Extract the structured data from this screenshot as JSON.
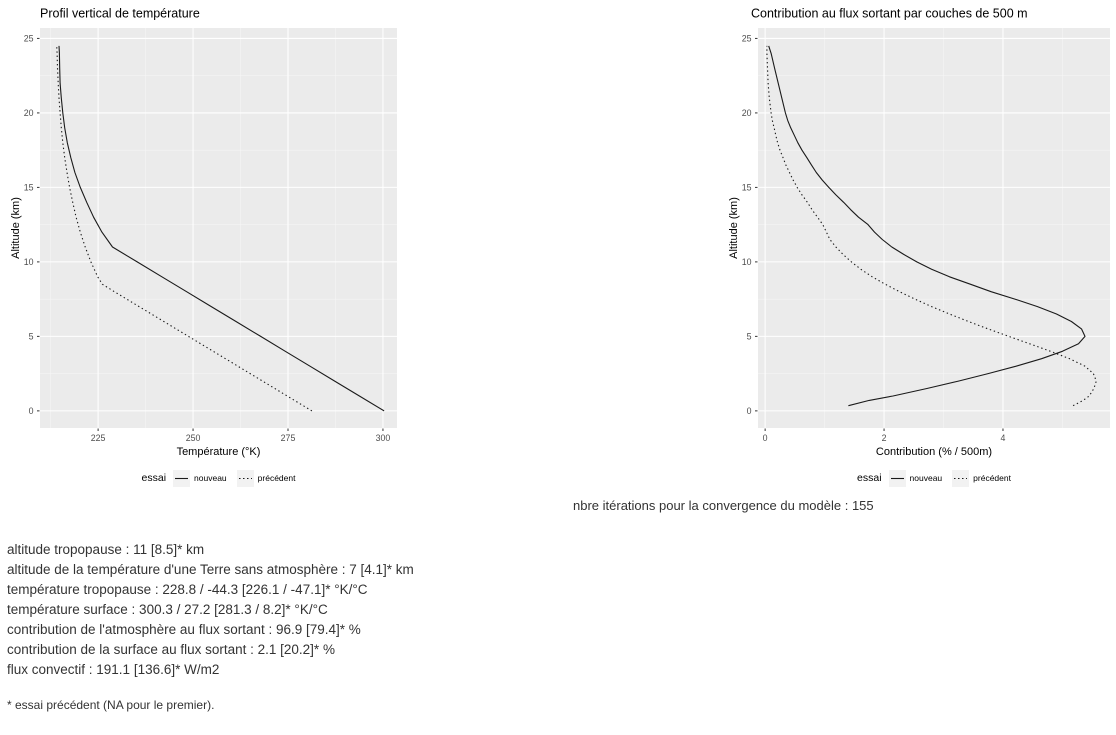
{
  "colors": {
    "panel_background": "#ebebeb",
    "grid_major": "#ffffff",
    "grid_minor": "#f7f7f7",
    "line": "#1a1a1a",
    "axis_tick_text": "#4d4d4d",
    "tick_mark": "#333333",
    "chart_text": "#000000",
    "body_text": "#333333",
    "legend_key_fill": "#f2f2f2"
  },
  "texts": {
    "iterations_line": "nbre itérations pour la convergence du modèle : 155",
    "stats": [
      "altitude tropopause : 11 [8.5]* km",
      "altitude de la température d'une Terre sans atmosphère : 7 [4.1]* km",
      "température tropopause : 228.8 / -44.3 [226.1 / -47.1]* °K/°C",
      "température surface : 300.3 / 27.2 [281.3 / 8.2]* °K/°C",
      "contribution de l'atmosphère au flux sortant : 96.9 [79.4]* %",
      "contribution de la surface au flux sortant : 2.1 [20.2]* %",
      "flux convectif : 191.1 [136.6]* W/m2"
    ],
    "footnote": "* essai précédent (NA pour le premier)."
  },
  "chart_data": [
    {
      "type": "line",
      "title": "Profil vertical de température",
      "xlabel": "Température (°K)",
      "ylabel": "Altitude (km)",
      "xlim": [
        209.7,
        303.7
      ],
      "ylim": [
        -1.15,
        25.7
      ],
      "xticks": [
        225,
        250,
        275,
        300
      ],
      "xticks_minor": [
        212.5,
        237.5,
        262.5,
        287.5
      ],
      "yticks": [
        0,
        5,
        10,
        15,
        20,
        25
      ],
      "yticks_minor": [
        2.5,
        7.5,
        12.5,
        17.5,
        22.5
      ],
      "grid": true,
      "legend_title": "essai",
      "legend_position": "bottom",
      "series": [
        {
          "name": "nouveau",
          "style": "solid",
          "points": [
            [
              300.3,
              0
            ],
            [
              293.8,
              1
            ],
            [
              287.3,
              2
            ],
            [
              280.8,
              3
            ],
            [
              274.3,
              4
            ],
            [
              267.8,
              5
            ],
            [
              261.3,
              6
            ],
            [
              254.8,
              7
            ],
            [
              248.3,
              8
            ],
            [
              241.8,
              9
            ],
            [
              235.3,
              10
            ],
            [
              228.8,
              11
            ],
            [
              226.0,
              12
            ],
            [
              223.8,
              13
            ],
            [
              222.0,
              14
            ],
            [
              220.3,
              15
            ],
            [
              218.9,
              16
            ],
            [
              217.8,
              17
            ],
            [
              216.9,
              18
            ],
            [
              216.2,
              19
            ],
            [
              215.7,
              20
            ],
            [
              215.3,
              21
            ],
            [
              215.0,
              22
            ],
            [
              214.9,
              23
            ],
            [
              214.8,
              24
            ],
            [
              214.7,
              24.5
            ]
          ]
        },
        {
          "name": "précédent",
          "style": "dotted",
          "points": [
            [
              281.3,
              0
            ],
            [
              274.8,
              1
            ],
            [
              268.3,
              2
            ],
            [
              261.8,
              3
            ],
            [
              255.3,
              4
            ],
            [
              248.8,
              5
            ],
            [
              242.3,
              6
            ],
            [
              235.8,
              7
            ],
            [
              229.3,
              8
            ],
            [
              226.1,
              8.5
            ],
            [
              224.9,
              9
            ],
            [
              223.1,
              10
            ],
            [
              221.6,
              11
            ],
            [
              220.3,
              12
            ],
            [
              219.2,
              13
            ],
            [
              218.3,
              14
            ],
            [
              217.5,
              15
            ],
            [
              216.8,
              16
            ],
            [
              216.2,
              17
            ],
            [
              215.7,
              18
            ],
            [
              215.3,
              19
            ],
            [
              215.0,
              20
            ],
            [
              214.7,
              21
            ],
            [
              214.5,
              22
            ],
            [
              214.3,
              23
            ],
            [
              214.2,
              24
            ],
            [
              214.1,
              24.5
            ]
          ]
        }
      ]
    },
    {
      "type": "line",
      "title": "Contribution au flux sortant par couches de 500 m",
      "xlabel": "Contribution (% / 500m)",
      "ylabel": "Altitude (km)",
      "xlim": [
        -0.12,
        5.8
      ],
      "ylim": [
        -1.15,
        25.7
      ],
      "xticks": [
        0,
        2,
        4
      ],
      "xticks_minor": [
        1,
        3,
        5
      ],
      "yticks": [
        0,
        5,
        10,
        15,
        20,
        25
      ],
      "yticks_minor": [
        2.5,
        7.5,
        12.5,
        17.5,
        22.5
      ],
      "grid": true,
      "legend_title": "essai",
      "legend_position": "bottom",
      "series": [
        {
          "name": "nouveau",
          "style": "solid",
          "points": [
            [
              1.4,
              0.35
            ],
            [
              1.75,
              0.7
            ],
            [
              2.15,
              1
            ],
            [
              2.72,
              1.5
            ],
            [
              3.25,
              2
            ],
            [
              3.75,
              2.5
            ],
            [
              4.22,
              3
            ],
            [
              4.65,
              3.5
            ],
            [
              5.0,
              4
            ],
            [
              5.27,
              4.5
            ],
            [
              5.38,
              5
            ],
            [
              5.32,
              5.5
            ],
            [
              5.15,
              6
            ],
            [
              4.9,
              6.5
            ],
            [
              4.58,
              7
            ],
            [
              4.2,
              7.5
            ],
            [
              3.8,
              8
            ],
            [
              3.45,
              8.5
            ],
            [
              3.1,
              9
            ],
            [
              2.8,
              9.5
            ],
            [
              2.55,
              10
            ],
            [
              2.33,
              10.5
            ],
            [
              2.13,
              11
            ],
            [
              1.97,
              11.5
            ],
            [
              1.84,
              12
            ],
            [
              1.73,
              12.5
            ],
            [
              1.57,
              13
            ],
            [
              1.44,
              13.5
            ],
            [
              1.32,
              14
            ],
            [
              1.19,
              14.5
            ],
            [
              1.07,
              15
            ],
            [
              0.96,
              15.5
            ],
            [
              0.86,
              16
            ],
            [
              0.78,
              16.5
            ],
            [
              0.7,
              17
            ],
            [
              0.62,
              17.5
            ],
            [
              0.55,
              18
            ],
            [
              0.49,
              18.5
            ],
            [
              0.43,
              19
            ],
            [
              0.38,
              19.5
            ],
            [
              0.34,
              20
            ],
            [
              0.28,
              21
            ],
            [
              0.22,
              22
            ],
            [
              0.16,
              23
            ],
            [
              0.1,
              24
            ],
            [
              0.06,
              24.5
            ]
          ]
        },
        {
          "name": "précédent",
          "style": "dotted",
          "points": [
            [
              5.18,
              0.35
            ],
            [
              5.35,
              0.7
            ],
            [
              5.45,
              1
            ],
            [
              5.53,
              1.5
            ],
            [
              5.57,
              2
            ],
            [
              5.52,
              2.5
            ],
            [
              5.38,
              3
            ],
            [
              5.12,
              3.5
            ],
            [
              4.8,
              4
            ],
            [
              4.45,
              4.5
            ],
            [
              4.1,
              5
            ],
            [
              3.75,
              5.5
            ],
            [
              3.42,
              6
            ],
            [
              3.1,
              6.5
            ],
            [
              2.8,
              7
            ],
            [
              2.52,
              7.5
            ],
            [
              2.26,
              8
            ],
            [
              2.02,
              8.5
            ],
            [
              1.8,
              9
            ],
            [
              1.61,
              9.5
            ],
            [
              1.45,
              10
            ],
            [
              1.31,
              10.5
            ],
            [
              1.19,
              11
            ],
            [
              1.09,
              11.5
            ],
            [
              1.03,
              12
            ],
            [
              0.97,
              12.5
            ],
            [
              0.88,
              13
            ],
            [
              0.79,
              13.5
            ],
            [
              0.71,
              14
            ],
            [
              0.62,
              14.5
            ],
            [
              0.54,
              15
            ],
            [
              0.47,
              15.5
            ],
            [
              0.41,
              16
            ],
            [
              0.35,
              16.5
            ],
            [
              0.3,
              17
            ],
            [
              0.25,
              17.5
            ],
            [
              0.21,
              18
            ],
            [
              0.18,
              18.5
            ],
            [
              0.15,
              19
            ],
            [
              0.12,
              19.5
            ],
            [
              0.1,
              20
            ],
            [
              0.07,
              21
            ],
            [
              0.05,
              22
            ],
            [
              0.04,
              23
            ],
            [
              0.03,
              24
            ],
            [
              0.03,
              24.5
            ]
          ]
        }
      ]
    }
  ]
}
